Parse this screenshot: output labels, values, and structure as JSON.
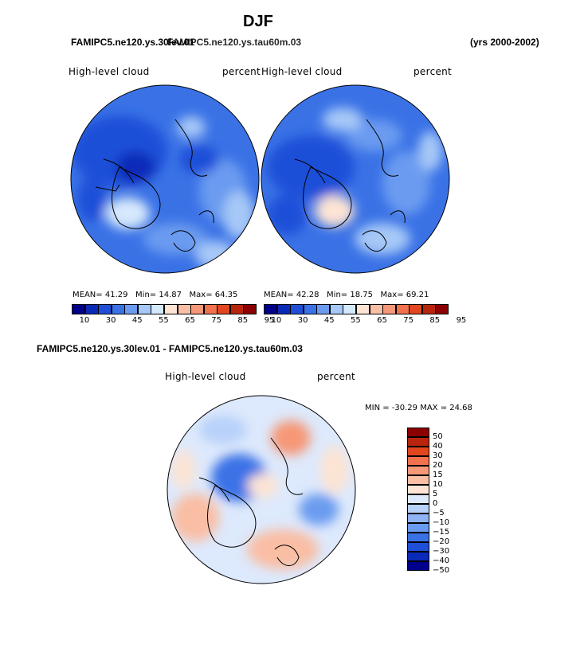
{
  "figure_title": "DJF",
  "header_left_a": "FAMIPC5.ne120.ys.30lev.01",
  "header_left_b": "FAMIPC5.ne120.ys.tau60m.03",
  "header_right": "(yrs 2000-2002)",
  "diff_title": "FAMIPC5.ne120.ys.30lev.01 - FAMIPC5.ne120.ys.tau60m.03",
  "colors": {
    "abs_palette": [
      "#00008b",
      "#0a2ab8",
      "#1f4fd8",
      "#3a72e6",
      "#6a9bf0",
      "#a6c8f7",
      "#d6e8fb",
      "#fde4d4",
      "#f9bea4",
      "#f69877",
      "#f2714f",
      "#e2461f",
      "#b8240d",
      "#8b0000"
    ],
    "diff_palette": [
      "#00008b",
      "#0a2ab8",
      "#1f4fd8",
      "#3a72e6",
      "#6a9bf0",
      "#8fb3f5",
      "#b7d1f9",
      "#dde9fc",
      "#fde4d4",
      "#f9bea4",
      "#f69877",
      "#f2714f",
      "#e2461f",
      "#b8240d",
      "#8b0000"
    ]
  },
  "chart_data": [
    {
      "type": "heatmap",
      "projection": "north-polar-stereographic",
      "variable": "High-level cloud",
      "units": "percent",
      "stats": {
        "mean_label": "MEAN=",
        "mean": "41.29",
        "min_label": "Min=",
        "min": "14.87",
        "max_label": "Max=",
        "max": "64.35"
      },
      "colorbar_ticks": [
        "10",
        "30",
        "45",
        "55",
        "65",
        "75",
        "85",
        "95"
      ],
      "dominant_levels": [
        45,
        35,
        50,
        40,
        55,
        30
      ]
    },
    {
      "type": "heatmap",
      "projection": "north-polar-stereographic",
      "variable": "High-level cloud",
      "units": "percent",
      "stats": {
        "mean_label": "MEAN=",
        "mean": "42.28",
        "min_label": "Min=",
        "min": "18.75",
        "max_label": "Max=",
        "max": "69.21"
      },
      "colorbar_ticks": [
        "10",
        "30",
        "45",
        "55",
        "65",
        "75",
        "85",
        "95"
      ],
      "dominant_levels": [
        45,
        40,
        35,
        50,
        55,
        30
      ]
    },
    {
      "type": "heatmap",
      "projection": "north-polar-stereographic",
      "variable": "High-level cloud",
      "units": "percent",
      "stats_label": "MIN = -30.29 MAX =  24.68",
      "min": -30.29,
      "max": 24.68,
      "colorbar_levels": [
        "50",
        "40",
        "30",
        "20",
        "15",
        "10",
        "5",
        "0",
        "−5",
        "−10",
        "−15",
        "−20",
        "−30",
        "−40",
        "−50"
      ]
    }
  ]
}
